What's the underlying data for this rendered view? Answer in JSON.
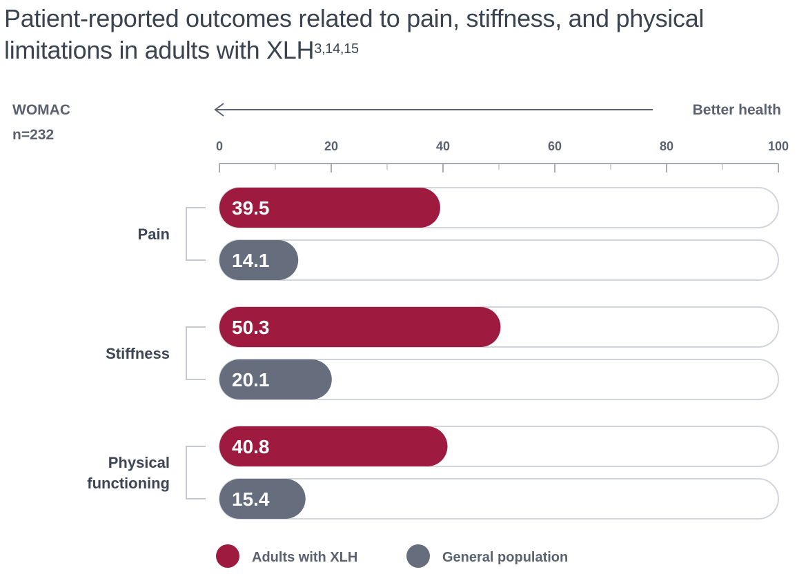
{
  "title": {
    "main": "Patient-reported outcomes related to pain, stiffness, and physical limitations in adults with XLH",
    "superscript": "3,14,15"
  },
  "scale": {
    "name": "WOMAC",
    "n": "n=232",
    "direction_label": "Better health"
  },
  "colors": {
    "xlh": "#9e1a3e",
    "general": "#666d7c",
    "track_border": "#d3d5dc",
    "axis": "#8a909c",
    "text": "#3d4654"
  },
  "chart_data": {
    "type": "bar",
    "orientation": "horizontal",
    "title": "Patient-reported outcomes related to pain, stiffness, and physical limitations in adults with XLH",
    "xlim": [
      0,
      100
    ],
    "ticks": [
      0,
      20,
      40,
      60,
      80,
      100
    ],
    "tick_labels": [
      "0",
      "20",
      "40",
      "60",
      "80",
      "100"
    ],
    "minor_ticks": [
      10,
      30,
      50,
      70,
      90
    ],
    "categories": [
      {
        "label_lines": [
          "Pain"
        ]
      },
      {
        "label_lines": [
          "Stiffness"
        ]
      },
      {
        "label_lines": [
          "Physical",
          "functioning"
        ]
      }
    ],
    "series": [
      {
        "name": "Adults with XLH",
        "color": "#9e1a3e",
        "values": [
          39.5,
          50.3,
          40.8
        ],
        "labels": [
          "39.5",
          "50.3",
          "40.8"
        ]
      },
      {
        "name": "General population",
        "color": "#666d7c",
        "values": [
          14.1,
          20.1,
          15.4
        ],
        "labels": [
          "14.1",
          "20.1",
          "15.4"
        ]
      }
    ],
    "legend": [
      "Adults with XLH",
      "General population"
    ],
    "legend_position": "bottom",
    "grid": false
  }
}
